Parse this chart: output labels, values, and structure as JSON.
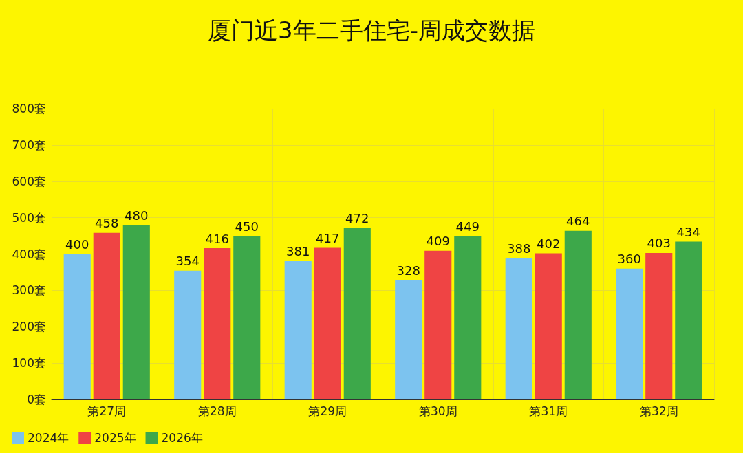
{
  "chart_data": {
    "type": "bar",
    "title": "厦门近3年二手住宅-周成交数据",
    "categories": [
      "第27周",
      "第28周",
      "第29周",
      "第30周",
      "第31周",
      "第32周"
    ],
    "series": [
      {
        "name": "2024年",
        "color": "#7cc3ef",
        "values": [
          400,
          354,
          381,
          328,
          388,
          360
        ]
      },
      {
        "name": "2025年",
        "color": "#ef4444",
        "values": [
          458,
          416,
          417,
          409,
          402,
          403
        ]
      },
      {
        "name": "2026年",
        "color": "#3da84a",
        "values": [
          480,
          450,
          472,
          449,
          464,
          434
        ]
      }
    ],
    "ylim": [
      0,
      800
    ],
    "yticks": [
      {
        "value": 0,
        "label": "0套"
      },
      {
        "value": 100,
        "label": "100套"
      },
      {
        "value": 200,
        "label": "200套"
      },
      {
        "value": 300,
        "label": "300套"
      },
      {
        "value": 400,
        "label": "400套"
      },
      {
        "value": 500,
        "label": "500套"
      },
      {
        "value": 600,
        "label": "600套"
      },
      {
        "value": 700,
        "label": "700套"
      },
      {
        "value": 800,
        "label": "800套"
      }
    ],
    "grid": true,
    "legend": "bottom left",
    "data_labels": true
  }
}
